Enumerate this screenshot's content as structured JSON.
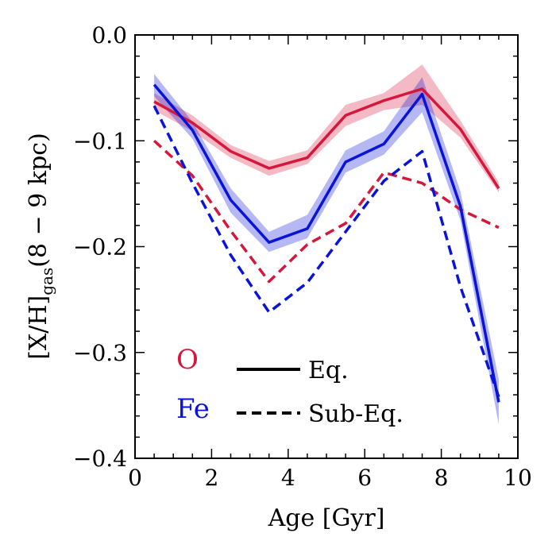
{
  "chart_data": {
    "type": "line",
    "xlabel": "Age [Gyr]",
    "ylabel": {
      "prefix": "[X/H]",
      "subscript": "gas",
      "suffix": "(8 − 9 kpc)"
    },
    "xlim": [
      0,
      10
    ],
    "ylim": [
      -0.4,
      0.0
    ],
    "x_ticks": [
      0,
      2,
      4,
      6,
      8,
      10
    ],
    "x_tick_labels": [
      "0",
      "2",
      "4",
      "6",
      "8",
      "10"
    ],
    "y_ticks": [
      0.0,
      -0.1,
      -0.2,
      -0.3,
      -0.4
    ],
    "y_tick_labels": [
      "0.0",
      "−0.1",
      "−0.2",
      "−0.3",
      "−0.4"
    ],
    "x": [
      0.5,
      1.5,
      2.5,
      3.5,
      4.5,
      5.5,
      6.5,
      7.5,
      8.5,
      9.5
    ],
    "series": [
      {
        "name": "O",
        "style": "solid",
        "color": "#d6173c",
        "values": [
          -0.063,
          -0.083,
          -0.11,
          -0.126,
          -0.116,
          -0.076,
          -0.062,
          -0.051,
          -0.089,
          -0.145
        ],
        "band_low": [
          -0.071,
          -0.091,
          -0.116,
          -0.133,
          -0.122,
          -0.086,
          -0.071,
          -0.066,
          -0.097,
          -0.149
        ],
        "band_high": [
          -0.055,
          -0.076,
          -0.104,
          -0.119,
          -0.109,
          -0.066,
          -0.055,
          -0.028,
          -0.081,
          -0.139
        ]
      },
      {
        "name": "Fe",
        "style": "solid",
        "color": "#0a14d8",
        "values": [
          -0.047,
          -0.09,
          -0.156,
          -0.196,
          -0.183,
          -0.12,
          -0.103,
          -0.056,
          -0.162,
          -0.347
        ],
        "band_low": [
          -0.058,
          -0.098,
          -0.168,
          -0.205,
          -0.192,
          -0.13,
          -0.113,
          -0.073,
          -0.175,
          -0.368
        ],
        "band_high": [
          -0.037,
          -0.082,
          -0.145,
          -0.186,
          -0.17,
          -0.109,
          -0.091,
          -0.04,
          -0.148,
          -0.325
        ]
      },
      {
        "name": "O",
        "style": "dashed",
        "color": "#d6173c",
        "values": [
          -0.1,
          -0.133,
          -0.185,
          -0.233,
          -0.198,
          -0.178,
          -0.13,
          -0.14,
          -0.165,
          -0.182
        ]
      },
      {
        "name": "Fe",
        "style": "dashed",
        "color": "#0a14d8",
        "values": [
          -0.067,
          -0.14,
          -0.208,
          -0.262,
          -0.234,
          -0.186,
          -0.138,
          -0.11,
          -0.238,
          -0.342
        ]
      }
    ],
    "legend_colors": [
      {
        "label": "O",
        "color": "#d6173c"
      },
      {
        "label": "Fe",
        "color": "#0a14d8"
      }
    ],
    "legend_styles": [
      {
        "label": "Eq.",
        "style": "solid"
      },
      {
        "label": "Sub-Eq.",
        "style": "dashed"
      }
    ],
    "legend_placement": "bottom-left",
    "grid": false
  }
}
